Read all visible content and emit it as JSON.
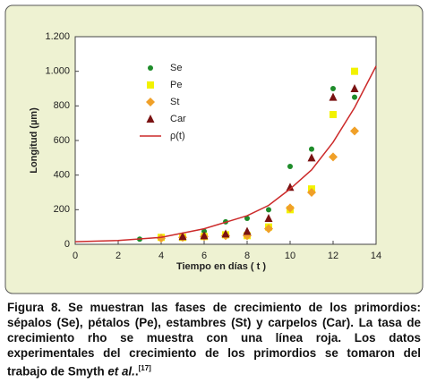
{
  "chart_data": {
    "type": "scatter",
    "xlabel": "Tiempo en días ( t )",
    "ylabel": "Longitud (µm)",
    "xlim": [
      0,
      14
    ],
    "xticks": [
      0,
      2,
      4,
      6,
      8,
      10,
      12,
      14
    ],
    "ylim": [
      0,
      1200
    ],
    "yticks": [
      0,
      200,
      400,
      600,
      800,
      {
        "value": 1000,
        "label": "1.000"
      },
      {
        "value": 1200,
        "label": "1.200"
      }
    ],
    "legend": "upper left",
    "series": [
      {
        "name": "Se",
        "color": "#1e8c2a",
        "marker": "circle",
        "x": [
          3,
          4,
          5,
          6,
          7,
          8,
          9,
          10,
          11,
          12,
          13
        ],
        "values": [
          30,
          35,
          45,
          75,
          130,
          150,
          200,
          450,
          550,
          900,
          850
        ]
      },
      {
        "name": "Pe",
        "color": "#f2f200",
        "marker": "square",
        "x": [
          4,
          5,
          6,
          7,
          8,
          9,
          10,
          11,
          12,
          13
        ],
        "values": [
          40,
          40,
          45,
          55,
          50,
          100,
          200,
          320,
          750,
          1000
        ]
      },
      {
        "name": "St",
        "color": "#f0a028",
        "marker": "diamond",
        "x": [
          4,
          5,
          6,
          7,
          8,
          9,
          10,
          11,
          12,
          13
        ],
        "values": [
          35,
          40,
          45,
          50,
          50,
          90,
          210,
          300,
          505,
          655
        ]
      },
      {
        "name": "Car",
        "color": "#7a1212",
        "marker": "triangle",
        "x": [
          5,
          6,
          7,
          8,
          9,
          10,
          11,
          12,
          13
        ],
        "values": [
          45,
          50,
          60,
          75,
          150,
          330,
          500,
          850,
          900
        ]
      },
      {
        "name": "ρ(t)",
        "color": "#cc2a2a",
        "marker": "line",
        "x": [
          0,
          2,
          4,
          6,
          8,
          9,
          10,
          11,
          12,
          13,
          14
        ],
        "values": [
          15,
          22,
          40,
          90,
          165,
          225,
          320,
          430,
          590,
          790,
          1030
        ]
      }
    ]
  },
  "caption": {
    "parts": [
      "Figura 8. Se muestran las fases de crecimiento de los primordios: sépalos (Se), pétalos (Pe), estambres (St) y carpelos (Car). La tasa de crecimiento rho se muestra con una línea roja. Los datos experimentales del crecimiento de los primordios se tomaron del trabajo de Smyth ",
      "et al.",
      ".",
      "[17]"
    ]
  }
}
